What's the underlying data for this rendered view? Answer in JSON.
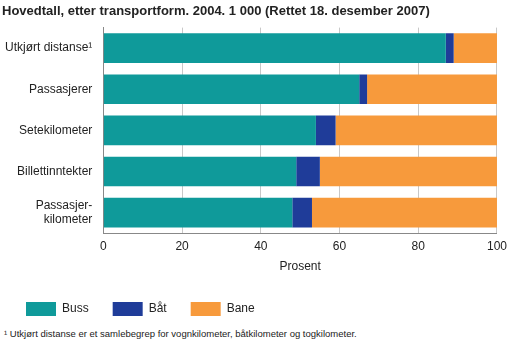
{
  "chart_data": {
    "type": "bar",
    "orientation": "horizontal",
    "stacked": true,
    "title": "Hovedtall, etter transportform. 2004. 1 000 (Rettet 18. desember 2007)",
    "x_label": "Prosent",
    "annotations": [
      "¹ Utkjørt distanse er et samlebegrep for vognkilometer, båtkilometer og togkilometer."
    ],
    "categories": [
      "Utkjørt distanse¹",
      "Passasjerer",
      "Setekilometer",
      "Billettinntekter",
      "Passasjer-\nkilometer"
    ],
    "series": [
      {
        "name": "Buss",
        "color": "#0f9a9a",
        "values": [
          87,
          65,
          54,
          49,
          48
        ]
      },
      {
        "name": "Båt",
        "color": "#1f3c99",
        "values": [
          2,
          2,
          5,
          6,
          5
        ]
      },
      {
        "name": "Bane",
        "color": "#f79a3c",
        "values": [
          11,
          33,
          41,
          45,
          47
        ]
      }
    ],
    "xlim": [
      0,
      100
    ],
    "xticks": [
      0,
      20,
      40,
      60,
      80,
      100
    ],
    "grid": true,
    "legend": "bottom"
  }
}
